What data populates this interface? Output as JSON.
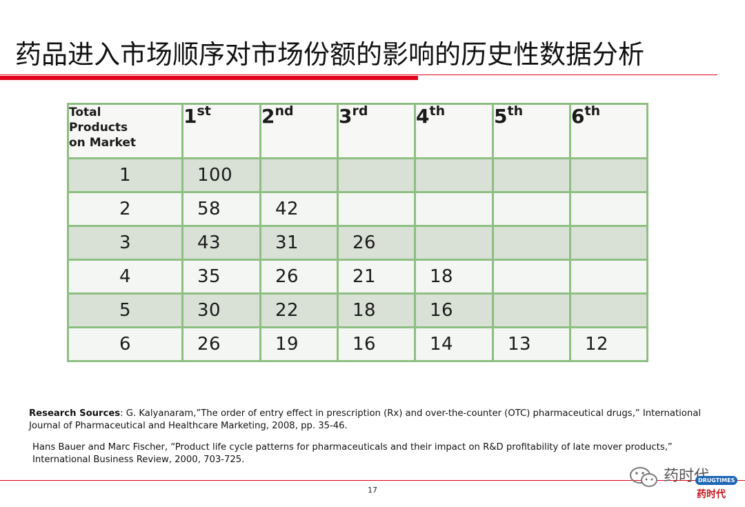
{
  "title": "药品进入市场顺序对市场份额的影响的历史性数据分析",
  "table": {
    "corner": [
      "Total",
      "Products",
      "on Market"
    ],
    "columns": [
      {
        "num": "1",
        "suffix": "st"
      },
      {
        "num": "2",
        "suffix": "nd"
      },
      {
        "num": "3",
        "suffix": "rd"
      },
      {
        "num": "4",
        "suffix": "th"
      },
      {
        "num": "5",
        "suffix": "th"
      },
      {
        "num": "6",
        "suffix": "th"
      }
    ],
    "rows": [
      {
        "label": "1",
        "cells": [
          "100",
          "",
          "",
          "",
          "",
          ""
        ]
      },
      {
        "label": "2",
        "cells": [
          "58",
          "42",
          "",
          "",
          "",
          ""
        ]
      },
      {
        "label": "3",
        "cells": [
          "43",
          "31",
          "26",
          "",
          "",
          ""
        ]
      },
      {
        "label": "4",
        "cells": [
          "35",
          "26",
          "21",
          "18",
          "",
          ""
        ]
      },
      {
        "label": "5",
        "cells": [
          "30",
          "22",
          "18",
          "16",
          "",
          ""
        ]
      },
      {
        "label": "6",
        "cells": [
          "26",
          "19",
          "16",
          "14",
          "13",
          "12"
        ]
      }
    ]
  },
  "sources": {
    "label": "Research Sources",
    "source1": ": G. Kalyanaram,”The order of entry effect in prescription (Rx) and over-the-counter (OTC) pharmaceutical drugs,” International Journal of Pharmaceutical and Healthcare Marketing, 2008, pp. 35-46.",
    "source2": "Hans Bauer and Marc Fischer, “Product life cycle patterns for pharmaceuticals and their impact on R&D profitability of late mover products,” International Business Review, 2000, 703-725."
  },
  "page_number": "17",
  "watermark": {
    "name": "药时代",
    "badge": "DRUGTIMES",
    "sub": "药时代"
  },
  "colors": {
    "accent_red": "#e1001a",
    "grid_green": "#8dbf82",
    "row_shade": "#d9e1d7"
  }
}
